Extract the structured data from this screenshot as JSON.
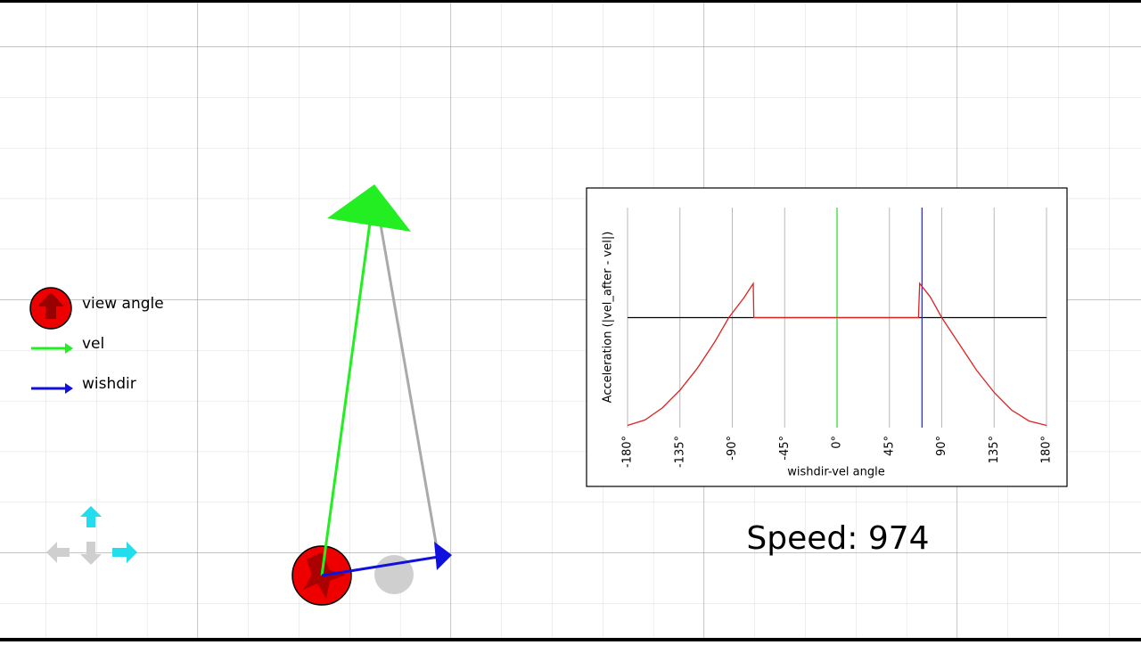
{
  "legend": [
    "view angle",
    "vel",
    "wishdir"
  ],
  "speed": "Speed: 974",
  "chart_data": {
    "type": "line",
    "xlabel": "wishdir-vel angle",
    "ylabel": "Acceleration (|vel_after - vel|)",
    "x": [
      -180,
      -165,
      -150,
      -135,
      -120,
      -105,
      -93,
      -80,
      -72,
      -71.5,
      0,
      70,
      71,
      80,
      90,
      105,
      120,
      135,
      150,
      165,
      180
    ],
    "values": [
      -0.98,
      -0.93,
      -0.82,
      -0.66,
      -0.46,
      -0.22,
      0,
      0.18,
      0.31,
      0,
      0,
      0,
      0.31,
      0.19,
      0,
      -0.24,
      -0.48,
      -0.68,
      -0.84,
      -0.94,
      -0.98
    ],
    "color": "#dd2222",
    "xlim": [
      -180,
      180
    ],
    "ylim": [
      -1,
      1
    ],
    "xticks": [
      {
        "value": -180,
        "label": "-180°"
      },
      {
        "value": -135,
        "label": "-135°"
      },
      {
        "value": -90,
        "label": "-90°"
      },
      {
        "value": -45,
        "label": "-45°"
      },
      {
        "value": 0,
        "label": "0°"
      },
      {
        "value": 45,
        "label": "45°"
      },
      {
        "value": 90,
        "label": "90°"
      },
      {
        "value": 135,
        "label": "135°"
      },
      {
        "value": 180,
        "label": "180°"
      }
    ],
    "grid": true,
    "hline": 0,
    "markers": [
      {
        "x": 0,
        "color": "#22dd22"
      },
      {
        "x": 73,
        "color": "#2222bb"
      }
    ]
  }
}
